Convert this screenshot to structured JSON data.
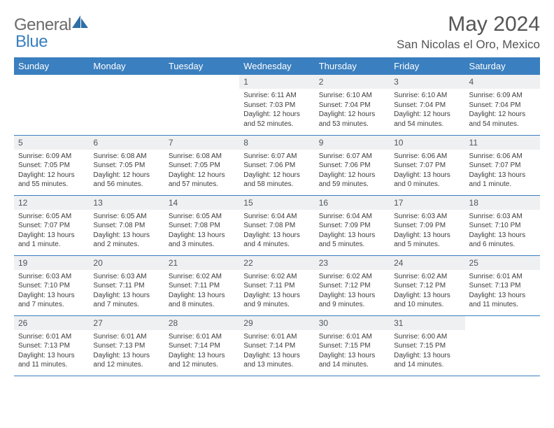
{
  "brand": {
    "part1": "General",
    "part2": "Blue"
  },
  "title": "May 2024",
  "location": "San Nicolas el Oro, Mexico",
  "colors": {
    "header_bg": "#3a7fbf",
    "header_text": "#ffffff",
    "daynum_bg": "#eef0f2",
    "border": "#3a7fbf",
    "text": "#3c3c3c",
    "title": "#555555"
  },
  "weekdays": [
    "Sunday",
    "Monday",
    "Tuesday",
    "Wednesday",
    "Thursday",
    "Friday",
    "Saturday"
  ],
  "weeks": [
    [
      {
        "n": "",
        "sr": "",
        "ss": "",
        "dl": ""
      },
      {
        "n": "",
        "sr": "",
        "ss": "",
        "dl": ""
      },
      {
        "n": "",
        "sr": "",
        "ss": "",
        "dl": ""
      },
      {
        "n": "1",
        "sr": "Sunrise: 6:11 AM",
        "ss": "Sunset: 7:03 PM",
        "dl": "Daylight: 12 hours and 52 minutes."
      },
      {
        "n": "2",
        "sr": "Sunrise: 6:10 AM",
        "ss": "Sunset: 7:04 PM",
        "dl": "Daylight: 12 hours and 53 minutes."
      },
      {
        "n": "3",
        "sr": "Sunrise: 6:10 AM",
        "ss": "Sunset: 7:04 PM",
        "dl": "Daylight: 12 hours and 54 minutes."
      },
      {
        "n": "4",
        "sr": "Sunrise: 6:09 AM",
        "ss": "Sunset: 7:04 PM",
        "dl": "Daylight: 12 hours and 54 minutes."
      }
    ],
    [
      {
        "n": "5",
        "sr": "Sunrise: 6:09 AM",
        "ss": "Sunset: 7:05 PM",
        "dl": "Daylight: 12 hours and 55 minutes."
      },
      {
        "n": "6",
        "sr": "Sunrise: 6:08 AM",
        "ss": "Sunset: 7:05 PM",
        "dl": "Daylight: 12 hours and 56 minutes."
      },
      {
        "n": "7",
        "sr": "Sunrise: 6:08 AM",
        "ss": "Sunset: 7:05 PM",
        "dl": "Daylight: 12 hours and 57 minutes."
      },
      {
        "n": "8",
        "sr": "Sunrise: 6:07 AM",
        "ss": "Sunset: 7:06 PM",
        "dl": "Daylight: 12 hours and 58 minutes."
      },
      {
        "n": "9",
        "sr": "Sunrise: 6:07 AM",
        "ss": "Sunset: 7:06 PM",
        "dl": "Daylight: 12 hours and 59 minutes."
      },
      {
        "n": "10",
        "sr": "Sunrise: 6:06 AM",
        "ss": "Sunset: 7:07 PM",
        "dl": "Daylight: 13 hours and 0 minutes."
      },
      {
        "n": "11",
        "sr": "Sunrise: 6:06 AM",
        "ss": "Sunset: 7:07 PM",
        "dl": "Daylight: 13 hours and 1 minute."
      }
    ],
    [
      {
        "n": "12",
        "sr": "Sunrise: 6:05 AM",
        "ss": "Sunset: 7:07 PM",
        "dl": "Daylight: 13 hours and 1 minute."
      },
      {
        "n": "13",
        "sr": "Sunrise: 6:05 AM",
        "ss": "Sunset: 7:08 PM",
        "dl": "Daylight: 13 hours and 2 minutes."
      },
      {
        "n": "14",
        "sr": "Sunrise: 6:05 AM",
        "ss": "Sunset: 7:08 PM",
        "dl": "Daylight: 13 hours and 3 minutes."
      },
      {
        "n": "15",
        "sr": "Sunrise: 6:04 AM",
        "ss": "Sunset: 7:08 PM",
        "dl": "Daylight: 13 hours and 4 minutes."
      },
      {
        "n": "16",
        "sr": "Sunrise: 6:04 AM",
        "ss": "Sunset: 7:09 PM",
        "dl": "Daylight: 13 hours and 5 minutes."
      },
      {
        "n": "17",
        "sr": "Sunrise: 6:03 AM",
        "ss": "Sunset: 7:09 PM",
        "dl": "Daylight: 13 hours and 5 minutes."
      },
      {
        "n": "18",
        "sr": "Sunrise: 6:03 AM",
        "ss": "Sunset: 7:10 PM",
        "dl": "Daylight: 13 hours and 6 minutes."
      }
    ],
    [
      {
        "n": "19",
        "sr": "Sunrise: 6:03 AM",
        "ss": "Sunset: 7:10 PM",
        "dl": "Daylight: 13 hours and 7 minutes."
      },
      {
        "n": "20",
        "sr": "Sunrise: 6:03 AM",
        "ss": "Sunset: 7:11 PM",
        "dl": "Daylight: 13 hours and 7 minutes."
      },
      {
        "n": "21",
        "sr": "Sunrise: 6:02 AM",
        "ss": "Sunset: 7:11 PM",
        "dl": "Daylight: 13 hours and 8 minutes."
      },
      {
        "n": "22",
        "sr": "Sunrise: 6:02 AM",
        "ss": "Sunset: 7:11 PM",
        "dl": "Daylight: 13 hours and 9 minutes."
      },
      {
        "n": "23",
        "sr": "Sunrise: 6:02 AM",
        "ss": "Sunset: 7:12 PM",
        "dl": "Daylight: 13 hours and 9 minutes."
      },
      {
        "n": "24",
        "sr": "Sunrise: 6:02 AM",
        "ss": "Sunset: 7:12 PM",
        "dl": "Daylight: 13 hours and 10 minutes."
      },
      {
        "n": "25",
        "sr": "Sunrise: 6:01 AM",
        "ss": "Sunset: 7:13 PM",
        "dl": "Daylight: 13 hours and 11 minutes."
      }
    ],
    [
      {
        "n": "26",
        "sr": "Sunrise: 6:01 AM",
        "ss": "Sunset: 7:13 PM",
        "dl": "Daylight: 13 hours and 11 minutes."
      },
      {
        "n": "27",
        "sr": "Sunrise: 6:01 AM",
        "ss": "Sunset: 7:13 PM",
        "dl": "Daylight: 13 hours and 12 minutes."
      },
      {
        "n": "28",
        "sr": "Sunrise: 6:01 AM",
        "ss": "Sunset: 7:14 PM",
        "dl": "Daylight: 13 hours and 12 minutes."
      },
      {
        "n": "29",
        "sr": "Sunrise: 6:01 AM",
        "ss": "Sunset: 7:14 PM",
        "dl": "Daylight: 13 hours and 13 minutes."
      },
      {
        "n": "30",
        "sr": "Sunrise: 6:01 AM",
        "ss": "Sunset: 7:15 PM",
        "dl": "Daylight: 13 hours and 14 minutes."
      },
      {
        "n": "31",
        "sr": "Sunrise: 6:00 AM",
        "ss": "Sunset: 7:15 PM",
        "dl": "Daylight: 13 hours and 14 minutes."
      },
      {
        "n": "",
        "sr": "",
        "ss": "",
        "dl": ""
      }
    ]
  ]
}
